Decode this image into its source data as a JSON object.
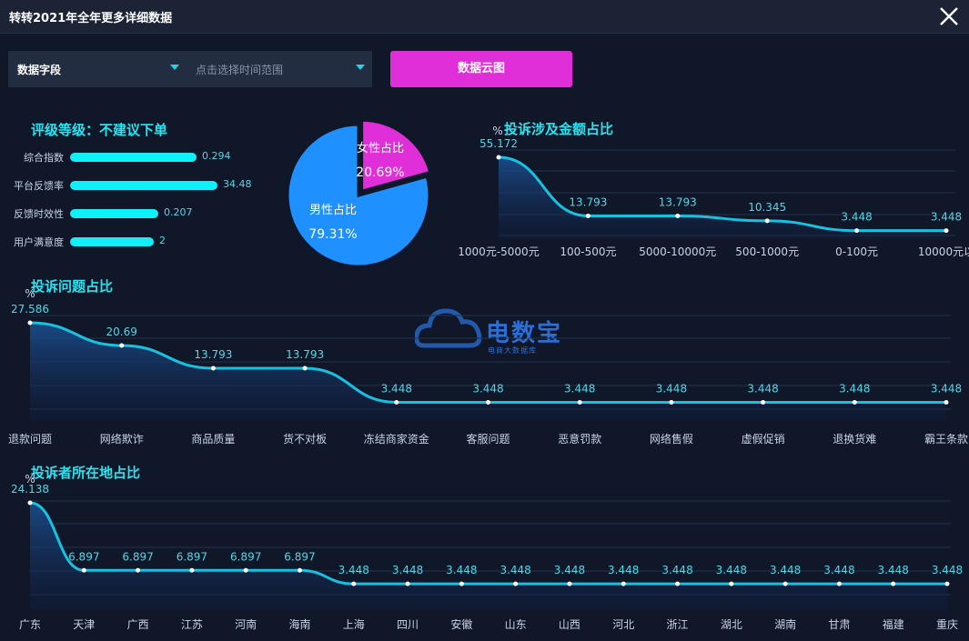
{
  "window": {
    "title": "转转2021年全年更多详细数据"
  },
  "controls": {
    "field_select": "数据字段",
    "time_select_placeholder": "点击选择时间范围",
    "cloud_button": "数据云图"
  },
  "rating": {
    "title": "评级等级：不建议下单",
    "items": [
      {
        "label": "综合指数",
        "value": "0.294",
        "fill": 0.66
      },
      {
        "label": "平台反馈率",
        "value": "34.48",
        "fill": 0.77
      },
      {
        "label": "反馈时效性",
        "value": "0.207",
        "fill": 0.46
      },
      {
        "label": "用户满意度",
        "value": "2",
        "fill": 0.44
      }
    ]
  },
  "watermark": {
    "name": "电数宝",
    "sub": "电商大数据库",
    "logo": "eDT"
  },
  "colors": {
    "accent": "#24e6f2",
    "female": "#e02ed8",
    "male": "#1e90ff",
    "line": "#17c1e0"
  },
  "chart_data": [
    {
      "type": "pie",
      "slices": [
        {
          "label": "女性占比",
          "value": 20.69,
          "display": "20.69%",
          "color": "#e02ed8"
        },
        {
          "label": "男性占比",
          "value": 79.31,
          "display": "79.31%",
          "color": "#1e90ff"
        }
      ]
    },
    {
      "type": "area",
      "title": "投诉涉及金额占比",
      "ylabel": "%",
      "categories": [
        "1000元-5000元",
        "100-500元",
        "5000-10000元",
        "500-1000元",
        "0-100元",
        "10000元以"
      ],
      "values": [
        55.172,
        13.793,
        13.793,
        10.345,
        3.448,
        3.448
      ],
      "labels": [
        "55.172",
        "13.793",
        "13.793",
        "10.345",
        "3.448",
        "3.448"
      ]
    },
    {
      "type": "area",
      "title": "投诉问题占比",
      "ylabel": "%",
      "categories": [
        "退款问题",
        "网络欺诈",
        "商品质量",
        "货不对板",
        "冻结商家资金",
        "客服问题",
        "恶意罚款",
        "网络售假",
        "虚假促销",
        "退换货难",
        "霸王条款"
      ],
      "values": [
        27.586,
        20.69,
        13.793,
        13.793,
        3.448,
        3.448,
        3.448,
        3.448,
        3.448,
        3.448,
        3.448
      ],
      "labels": [
        "27.586",
        "20.69",
        "13.793",
        "13.793",
        "3.448",
        "3.448",
        "3.448",
        "3.448",
        "3.448",
        "3.448",
        "3.448"
      ]
    },
    {
      "type": "area",
      "title": "投诉者所在地占比",
      "ylabel": "%",
      "categories": [
        "广东",
        "天津",
        "广西",
        "江苏",
        "河南",
        "海南",
        "上海",
        "四川",
        "安徽",
        "山东",
        "山西",
        "河北",
        "浙江",
        "湖北",
        "湖南",
        "甘肃",
        "福建",
        "重庆"
      ],
      "values": [
        24.138,
        6.897,
        6.897,
        6.897,
        6.897,
        6.897,
        3.448,
        3.448,
        3.448,
        3.448,
        3.448,
        3.448,
        3.448,
        3.448,
        3.448,
        3.448,
        3.448,
        3.448
      ],
      "labels": [
        "24.138",
        "6.897",
        "6.897",
        "6.897",
        "6.897",
        "6.897",
        "3.448",
        "3.448",
        "3.448",
        "3.448",
        "3.448",
        "3.448",
        "3.448",
        "3.448",
        "3.448",
        "3.448",
        "3.448",
        "3.448"
      ]
    }
  ]
}
